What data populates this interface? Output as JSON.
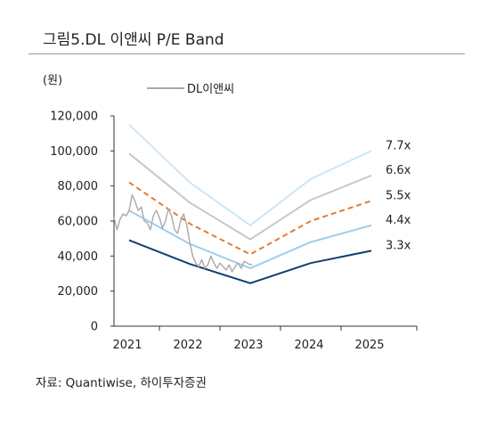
{
  "title": "그림5.DL 이앤씨  P/E Band",
  "source": "자료: Quantiwise,  하이투자증권",
  "chart_data": {
    "type": "line",
    "title": "그림5.DL 이앤씨  P/E Band",
    "ylabel": "(원)",
    "xlabel": "",
    "ylim": [
      0,
      120000
    ],
    "yticks": [
      0,
      20000,
      40000,
      60000,
      80000,
      100000,
      120000
    ],
    "ytick_labels": [
      "0",
      "20,000",
      "40,000",
      "60,000",
      "80,000",
      "100,000",
      "120,000"
    ],
    "xlim": [
      2020.75,
      2025.75
    ],
    "xticks": [
      2021,
      2022,
      2023,
      2024,
      2025
    ],
    "xtick_labels": [
      "2021",
      "2022",
      "2023",
      "2024",
      "2025"
    ],
    "grid": false,
    "legend": "top-left",
    "band_x": [
      2021,
      2022,
      2023,
      2024,
      2025
    ],
    "bands": [
      {
        "label": "7.7x",
        "color": "#cde6f6",
        "dash": false,
        "width": 2,
        "values": [
          115000,
          82000,
          57500,
          84000,
          100000
        ]
      },
      {
        "label": "6.6x",
        "color": "#c8c8c8",
        "dash": false,
        "width": 2,
        "values": [
          98500,
          70500,
          49500,
          72000,
          86000
        ]
      },
      {
        "label": "5.5x",
        "color": "#e97a2e",
        "dash": true,
        "width": 2,
        "values": [
          82000,
          58500,
          41000,
          60000,
          71500
        ]
      },
      {
        "label": "4.4x",
        "color": "#9fcdee",
        "dash": false,
        "width": 2,
        "values": [
          66000,
          47000,
          33000,
          48000,
          57500
        ]
      },
      {
        "label": "3.3x",
        "color": "#123f70",
        "dash": false,
        "width": 2,
        "values": [
          49000,
          35500,
          24500,
          36000,
          43000
        ]
      }
    ],
    "price_series": {
      "name": "DL이앤씨",
      "color": "#a9a9a9",
      "x": [
        2020.75,
        2020.8,
        2020.85,
        2020.9,
        2020.95,
        2021.0,
        2021.05,
        2021.1,
        2021.15,
        2021.2,
        2021.25,
        2021.3,
        2021.35,
        2021.4,
        2021.45,
        2021.5,
        2021.55,
        2021.6,
        2021.65,
        2021.7,
        2021.75,
        2021.8,
        2021.85,
        2021.9,
        2021.95,
        2022.0,
        2022.05,
        2022.1,
        2022.15,
        2022.2,
        2022.25,
        2022.3,
        2022.35,
        2022.4,
        2022.45,
        2022.5,
        2022.55,
        2022.6,
        2022.65,
        2022.7,
        2022.75,
        2022.8,
        2022.85,
        2022.9,
        2022.95,
        2023.0,
        2023.03
      ],
      "values": [
        62000,
        55000,
        61000,
        64000,
        63000,
        66000,
        75000,
        71000,
        66000,
        68000,
        60000,
        59000,
        55000,
        63000,
        66000,
        62000,
        56000,
        60000,
        67000,
        63000,
        55000,
        53000,
        60000,
        64000,
        58000,
        48000,
        40000,
        36000,
        34000,
        38000,
        33000,
        35000,
        40000,
        36000,
        33000,
        36000,
        34000,
        32000,
        35000,
        31000,
        34000,
        36000,
        33000,
        37000,
        36000,
        35000,
        35500
      ]
    }
  }
}
